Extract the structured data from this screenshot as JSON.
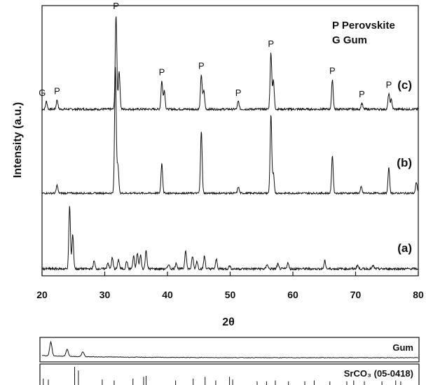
{
  "chart_data": {
    "type": "line",
    "xlabel": "2θ",
    "ylabel": "Intensity (a.u.)",
    "xlim": [
      20,
      80
    ],
    "xticks": [
      "20",
      "30",
      "40",
      "50",
      "60",
      "70",
      "80"
    ],
    "legend": [
      {
        "symbol": "P",
        "label": "Perovskite"
      },
      {
        "symbol": "G",
        "label": "Gum"
      }
    ],
    "series": [
      {
        "name": "(c)",
        "peaks": [
          {
            "x": 20.7,
            "h": 0.25,
            "label": "G"
          },
          {
            "x": 22.4,
            "h": 0.3,
            "label": "P"
          },
          {
            "x": 31.8,
            "h": 3.0,
            "label": "P"
          },
          {
            "x": 32.3,
            "h": 1.2,
            "label": ""
          },
          {
            "x": 39.1,
            "h": 0.9,
            "label": "P"
          },
          {
            "x": 39.5,
            "h": 0.6,
            "label": ""
          },
          {
            "x": 45.4,
            "h": 1.1,
            "label": "P"
          },
          {
            "x": 45.8,
            "h": 0.6,
            "label": ""
          },
          {
            "x": 51.3,
            "h": 0.25,
            "label": "P"
          },
          {
            "x": 56.5,
            "h": 1.8,
            "label": "P"
          },
          {
            "x": 56.9,
            "h": 0.9,
            "label": ""
          },
          {
            "x": 66.3,
            "h": 0.95,
            "label": "P"
          },
          {
            "x": 71.0,
            "h": 0.2,
            "label": "P"
          },
          {
            "x": 75.3,
            "h": 0.5,
            "label": "P"
          },
          {
            "x": 75.7,
            "h": 0.3,
            "label": ""
          }
        ]
      },
      {
        "name": "(b)",
        "peaks": [
          {
            "x": 22.4,
            "h": 0.25
          },
          {
            "x": 31.7,
            "h": 4.0
          },
          {
            "x": 32.1,
            "h": 0.9
          },
          {
            "x": 39.1,
            "h": 0.95
          },
          {
            "x": 45.4,
            "h": 2.0
          },
          {
            "x": 51.3,
            "h": 0.2
          },
          {
            "x": 56.5,
            "h": 2.5
          },
          {
            "x": 56.9,
            "h": 0.6
          },
          {
            "x": 66.3,
            "h": 1.2
          },
          {
            "x": 70.9,
            "h": 0.2
          },
          {
            "x": 75.3,
            "h": 0.8
          },
          {
            "x": 79.7,
            "h": 0.35
          }
        ]
      },
      {
        "name": "(a)",
        "peaks": [
          {
            "x": 24.4,
            "h": 2.0
          },
          {
            "x": 24.9,
            "h": 1.1
          },
          {
            "x": 28.3,
            "h": 0.25
          },
          {
            "x": 30.5,
            "h": 0.2
          },
          {
            "x": 31.2,
            "h": 0.35
          },
          {
            "x": 32.2,
            "h": 0.3
          },
          {
            "x": 33.5,
            "h": 0.25
          },
          {
            "x": 34.6,
            "h": 0.4
          },
          {
            "x": 35.2,
            "h": 0.5
          },
          {
            "x": 35.7,
            "h": 0.45
          },
          {
            "x": 36.6,
            "h": 0.6
          },
          {
            "x": 40.2,
            "h": 0.15
          },
          {
            "x": 41.4,
            "h": 0.2
          },
          {
            "x": 42.9,
            "h": 0.6
          },
          {
            "x": 44.0,
            "h": 0.4
          },
          {
            "x": 44.7,
            "h": 0.25
          },
          {
            "x": 45.9,
            "h": 0.4
          },
          {
            "x": 47.8,
            "h": 0.3
          },
          {
            "x": 49.9,
            "h": 0.1
          },
          {
            "x": 55.9,
            "h": 0.15
          },
          {
            "x": 57.6,
            "h": 0.15
          },
          {
            "x": 59.2,
            "h": 0.2
          },
          {
            "x": 65.1,
            "h": 0.25
          },
          {
            "x": 70.3,
            "h": 0.12
          },
          {
            "x": 72.8,
            "h": 0.1
          }
        ]
      }
    ],
    "reference_panels": [
      {
        "label": "Gum",
        "peaks": [
          {
            "x": 21.4,
            "h": 1.0
          },
          {
            "x": 24.0,
            "h": 0.5
          },
          {
            "x": 26.5,
            "h": 0.35
          }
        ]
      },
      {
        "label": "SrCO₃ (05-0418)",
        "sticks": [
          {
            "x": 20.2,
            "h": 0.35
          },
          {
            "x": 21.0,
            "h": 0.3
          },
          {
            "x": 25.2,
            "h": 1.0
          },
          {
            "x": 25.8,
            "h": 0.8
          },
          {
            "x": 29.6,
            "h": 0.3
          },
          {
            "x": 31.5,
            "h": 0.25
          },
          {
            "x": 34.5,
            "h": 0.35
          },
          {
            "x": 36.2,
            "h": 0.45
          },
          {
            "x": 36.6,
            "h": 0.5
          },
          {
            "x": 41.3,
            "h": 0.25
          },
          {
            "x": 44.1,
            "h": 0.35
          },
          {
            "x": 46.0,
            "h": 0.45
          },
          {
            "x": 47.7,
            "h": 0.25
          },
          {
            "x": 49.9,
            "h": 0.45
          },
          {
            "x": 50.4,
            "h": 0.3
          },
          {
            "x": 54.3,
            "h": 0.2
          },
          {
            "x": 55.8,
            "h": 0.2
          },
          {
            "x": 57.2,
            "h": 0.25
          },
          {
            "x": 59.3,
            "h": 0.2
          },
          {
            "x": 61.9,
            "h": 0.2
          },
          {
            "x": 63.4,
            "h": 0.25
          },
          {
            "x": 65.9,
            "h": 0.2
          },
          {
            "x": 68.6,
            "h": 0.2
          },
          {
            "x": 69.7,
            "h": 0.25
          },
          {
            "x": 71.4,
            "h": 0.2
          },
          {
            "x": 74.2,
            "h": 0.2
          },
          {
            "x": 76.4,
            "h": 0.25
          },
          {
            "x": 77.2,
            "h": 0.2
          }
        ]
      }
    ]
  }
}
